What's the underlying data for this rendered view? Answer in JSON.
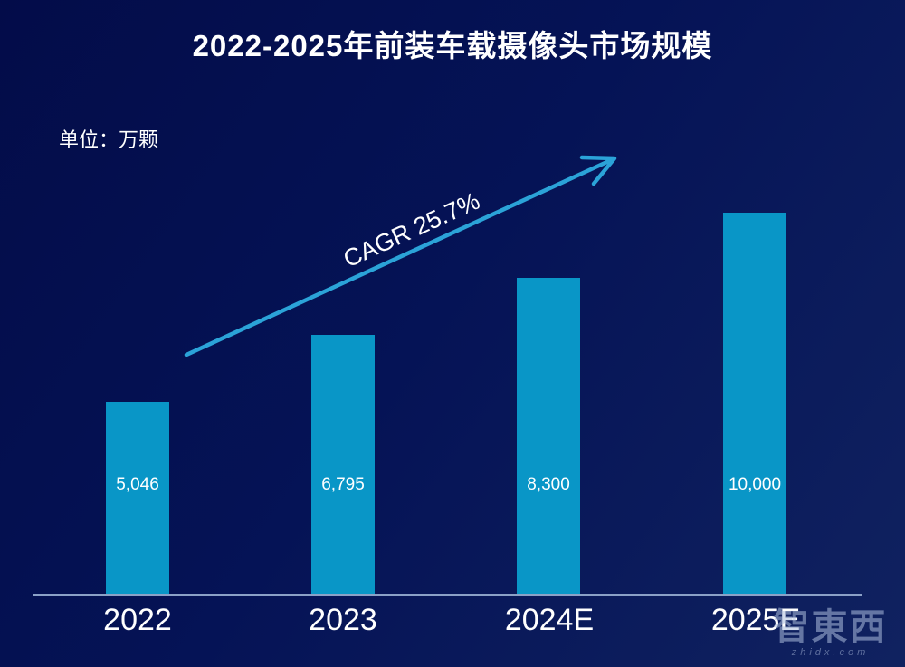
{
  "header": {
    "title": "2022-2025年前装车载摄像头市场规模",
    "unit_label": "单位：万颗"
  },
  "chart_data": {
    "type": "bar",
    "title": "2022-2025年前装车载摄像头市场规模",
    "ylabel": "单位：万颗",
    "xlabel": "",
    "categories": [
      "2022",
      "2023",
      "2024E",
      "2025E"
    ],
    "values": [
      5046,
      6795,
      8300,
      10000
    ],
    "value_labels": [
      "5,046",
      "6,795",
      "8,300",
      "10,000"
    ],
    "ylim": [
      0,
      10000
    ],
    "grid": false,
    "legend": false,
    "annotation": "CAGR 25.7%",
    "colors": {
      "background": "#051356",
      "bar": "#0996c7",
      "arrow": "#2ba3d8",
      "axis_line": "#8ba1c7",
      "text": "#ffffff"
    }
  },
  "watermark": {
    "logo": "智東西",
    "domain": "zhidx.com"
  }
}
